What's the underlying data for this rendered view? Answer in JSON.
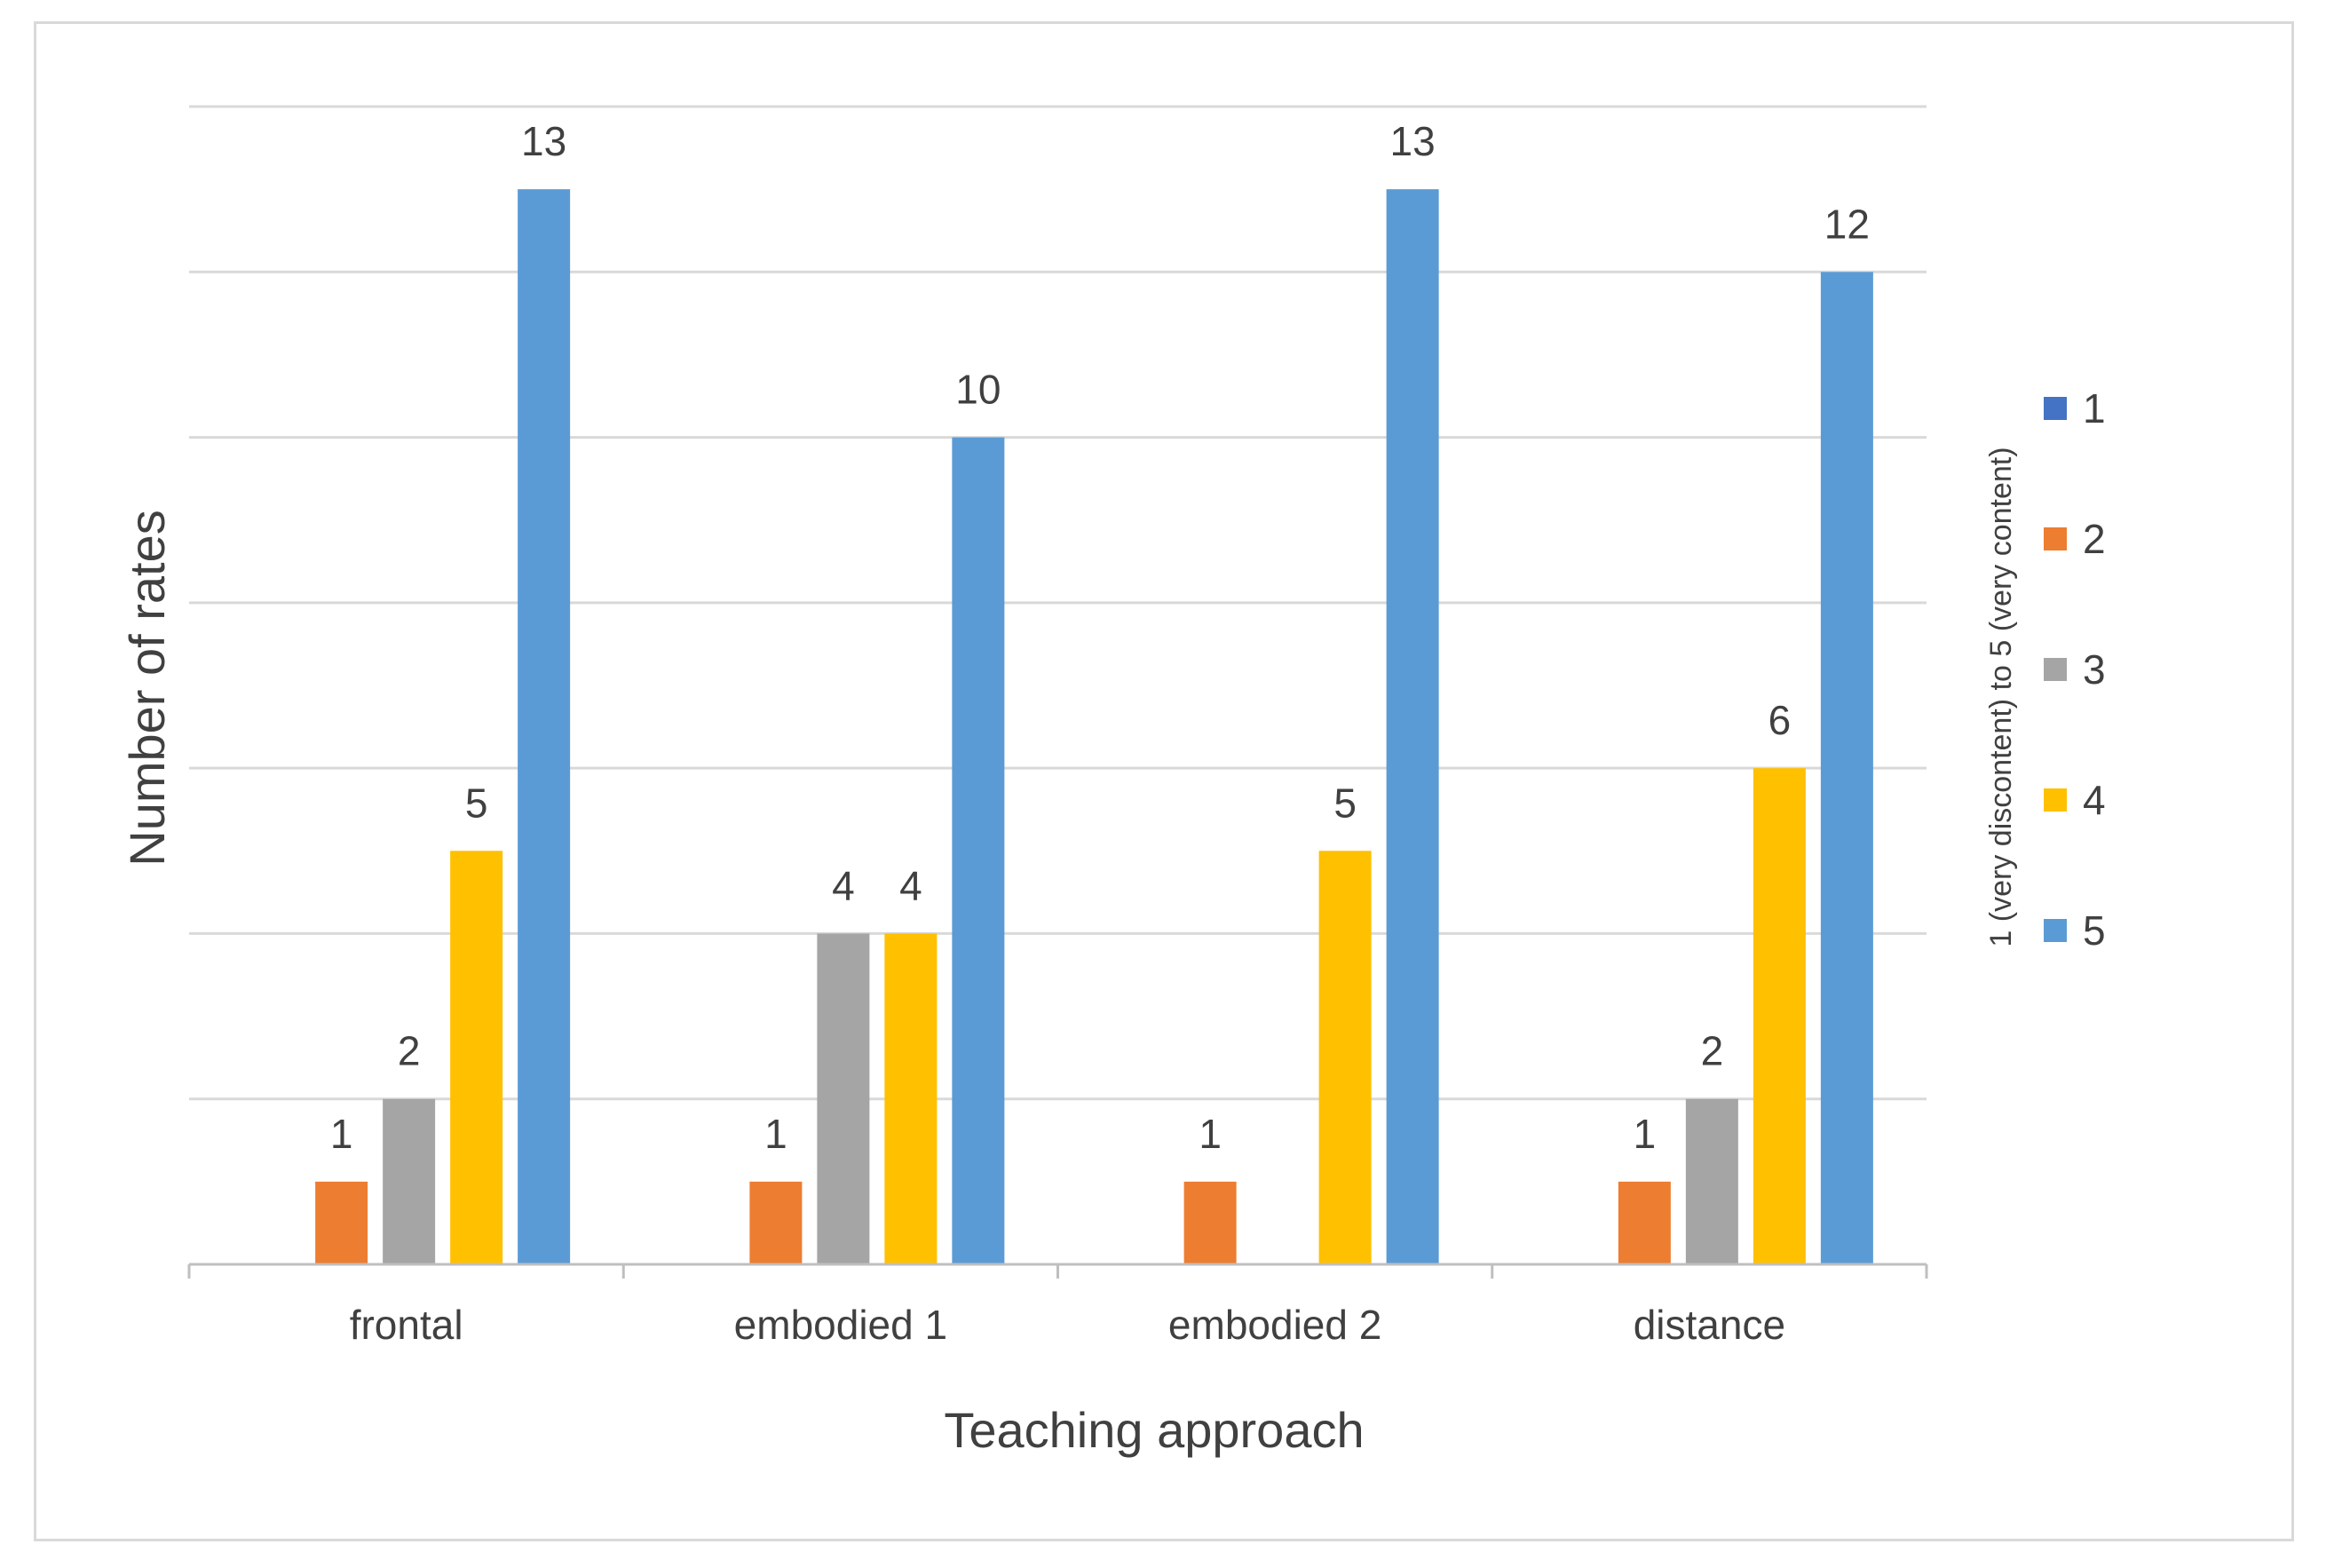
{
  "chart_data": {
    "type": "bar",
    "xlabel": "Teaching approach",
    "ylabel": "Number of rates",
    "categories": [
      "frontal",
      "embodied 1",
      "embodied 2",
      "distance"
    ],
    "ylim": [
      0,
      14
    ],
    "grid": true,
    "legend_title": "1 (very discontent) to 5 (very content)",
    "legend_position": "right",
    "series": [
      {
        "name": "1",
        "color": "#4472c4",
        "values": [
          0,
          0,
          0,
          0
        ]
      },
      {
        "name": "2",
        "color": "#ed7d31",
        "values": [
          1,
          1,
          1,
          1
        ]
      },
      {
        "name": "3",
        "color": "#a5a5a5",
        "values": [
          2,
          4,
          0,
          2
        ]
      },
      {
        "name": "4",
        "color": "#ffc000",
        "values": [
          5,
          4,
          5,
          6
        ]
      },
      {
        "name": "5",
        "color": "#5b9bd5",
        "values": [
          13,
          10,
          13,
          12
        ]
      }
    ]
  }
}
